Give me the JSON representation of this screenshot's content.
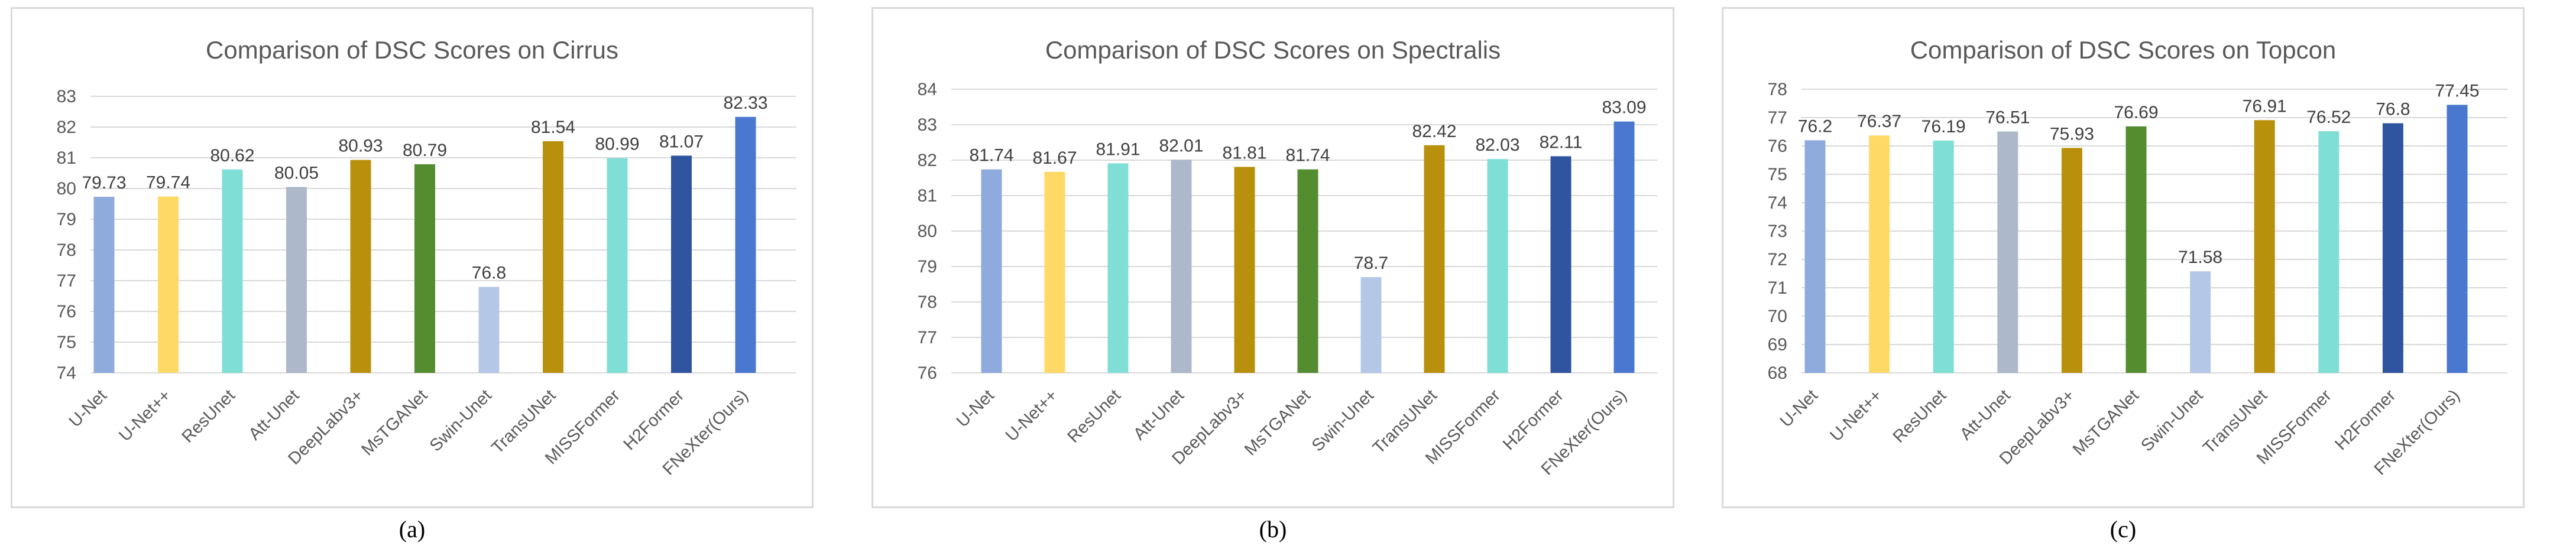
{
  "chart_data": [
    {
      "type": "bar",
      "title": "Comparison of DSC Scores on Cirrus",
      "caption": "(a)",
      "categories": [
        "U-Net",
        "U-Net++",
        "ResUnet",
        "Att-Unet",
        "DeepLabv3+",
        "MsTGANet",
        "Swin-Unet",
        "TransUNet",
        "MISSFormer",
        "H2Former",
        "FNeXter(Ours)"
      ],
      "values": [
        79.73,
        79.74,
        80.62,
        80.05,
        80.93,
        80.79,
        76.8,
        81.54,
        80.99,
        81.07,
        82.33
      ],
      "value_labels": [
        "79.73",
        "79.74",
        "80.62",
        "80.05",
        "80.93",
        "80.79",
        "76.8",
        "81.54",
        "80.99",
        "81.07",
        "82.33"
      ],
      "yticks": [
        "74",
        "75",
        "76",
        "77",
        "78",
        "79",
        "80",
        "81",
        "82",
        "83"
      ],
      "ylim": [
        74,
        83
      ],
      "xlabel": "",
      "ylabel": "",
      "grid": true,
      "legend": "none",
      "colors": [
        "#8faadc",
        "#ffd966",
        "#7fded6",
        "#adb9ca",
        "#b8900b",
        "#548c30",
        "#b4c7e7",
        "#b8900b",
        "#7fded6",
        "#2f55a0",
        "#4a78d0"
      ]
    },
    {
      "type": "bar",
      "title": "Comparison of DSC Scores on Spectralis",
      "caption": "(b)",
      "categories": [
        "U-Net",
        "U-Net++",
        "ResUnet",
        "Att-Unet",
        "DeepLabv3+",
        "MsTGANet",
        "Swin-Unet",
        "TransUNet",
        "MISSFormer",
        "H2Former",
        "FNeXter(Ours)"
      ],
      "values": [
        81.74,
        81.67,
        81.91,
        82.01,
        81.81,
        81.74,
        78.7,
        82.42,
        82.03,
        82.11,
        83.09
      ],
      "value_labels": [
        "81.74",
        "81.67",
        "81.91",
        "82.01",
        "81.81",
        "81.74",
        "78.7",
        "82.42",
        "82.03",
        "82.11",
        "83.09"
      ],
      "yticks": [
        "76",
        "77",
        "78",
        "79",
        "80",
        "81",
        "82",
        "83",
        "84"
      ],
      "ylim": [
        76,
        84
      ],
      "xlabel": "",
      "ylabel": "",
      "grid": true,
      "legend": "none",
      "colors": [
        "#8faadc",
        "#ffd966",
        "#7fded6",
        "#adb9ca",
        "#b8900b",
        "#548c30",
        "#b4c7e7",
        "#b8900b",
        "#7fded6",
        "#2f55a0",
        "#4a78d0"
      ]
    },
    {
      "type": "bar",
      "title": "Comparison of DSC Scores on Topcon",
      "caption": "(c)",
      "categories": [
        "U-Net",
        "U-Net++",
        "ResUnet",
        "Att-Unet",
        "DeepLabv3+",
        "MsTGANet",
        "Swin-Unet",
        "TransUNet",
        "MISSFormer",
        "H2Former",
        "FNeXter(Ours)"
      ],
      "values": [
        76.2,
        76.37,
        76.19,
        76.51,
        75.93,
        76.69,
        71.58,
        76.91,
        76.52,
        76.8,
        77.45
      ],
      "value_labels": [
        "76.2",
        "76.37",
        "76.19",
        "76.51",
        "75.93",
        "76.69",
        "71.58",
        "76.91",
        "76.52",
        "76.8",
        "77.45"
      ],
      "yticks": [
        "68",
        "69",
        "70",
        "71",
        "72",
        "73",
        "74",
        "75",
        "76",
        "77",
        "78"
      ],
      "ylim": [
        68,
        78
      ],
      "xlabel": "",
      "ylabel": "",
      "grid": true,
      "legend": "none",
      "colors": [
        "#8faadc",
        "#ffd966",
        "#7fded6",
        "#adb9ca",
        "#b8900b",
        "#548c30",
        "#b4c7e7",
        "#b8900b",
        "#7fded6",
        "#2f55a0",
        "#4a78d0"
      ]
    }
  ]
}
